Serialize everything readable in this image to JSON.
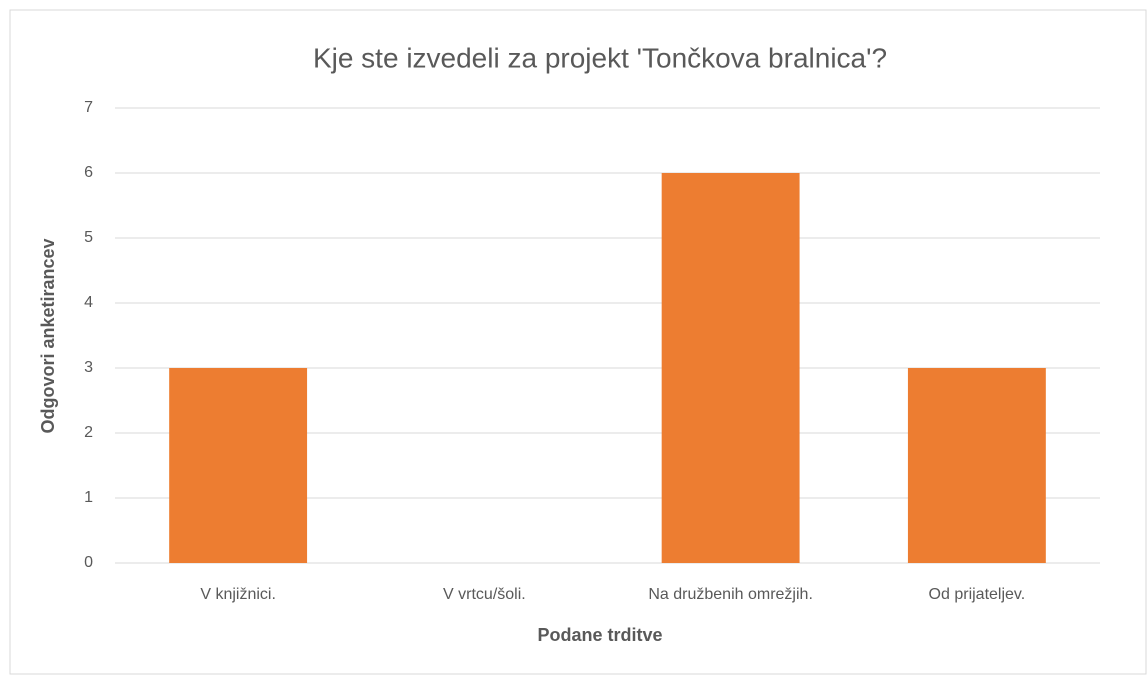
{
  "chart_data": {
    "type": "bar",
    "title": "Kje ste izvedeli za projekt 'Tončkova bralnica'?",
    "x_label": "Podane trditve",
    "y_label": "Odgovori anketirancev",
    "categories": [
      "V knjižnici.",
      "V vrtcu/šoli.",
      "Na družbenih omrežjih.",
      "Od prijateljev."
    ],
    "values": [
      3,
      0,
      6,
      3
    ],
    "color": "#ed7d31",
    "ylim": [
      0,
      7
    ],
    "yticks": [
      0,
      1,
      2,
      3,
      4,
      5,
      6,
      7
    ],
    "grid": true
  }
}
